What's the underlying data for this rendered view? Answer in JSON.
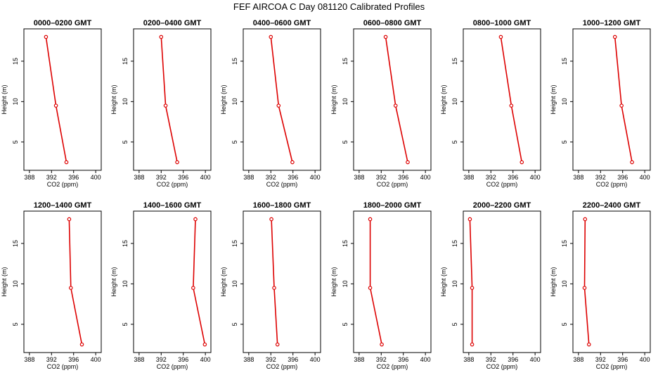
{
  "figure": {
    "title": "FEF AIRCOA C  Day 081120  Calibrated Profiles"
  },
  "colors": {
    "profile": "#dd0000",
    "axis": "#000000"
  },
  "chart_data": [
    {
      "type": "line",
      "title": "0000–0200 GMT",
      "xlabel": "CO2 (ppm)",
      "ylabel": "Height (m)",
      "xlim": [
        387,
        401
      ],
      "ylim": [
        1.5,
        19
      ],
      "xticks": [
        388,
        392,
        396,
        400
      ],
      "yticks": [
        5,
        10,
        15
      ],
      "x": [
        391.0,
        392.8,
        394.7
      ],
      "y": [
        18,
        9.5,
        2.5
      ]
    },
    {
      "type": "line",
      "title": "0200–0400 GMT",
      "xlabel": "CO2 (ppm)",
      "ylabel": "Height (m)",
      "xlim": [
        387,
        401
      ],
      "ylim": [
        1.5,
        19
      ],
      "xticks": [
        388,
        392,
        396,
        400
      ],
      "yticks": [
        5,
        10,
        15
      ],
      "x": [
        392.0,
        392.8,
        394.9
      ],
      "y": [
        18,
        9.5,
        2.5
      ]
    },
    {
      "type": "line",
      "title": "0400–0600 GMT",
      "xlabel": "CO2 (ppm)",
      "ylabel": "Height (m)",
      "xlim": [
        387,
        401
      ],
      "ylim": [
        1.5,
        19
      ],
      "xticks": [
        388,
        392,
        396,
        400
      ],
      "yticks": [
        5,
        10,
        15
      ],
      "x": [
        392.0,
        393.4,
        395.9
      ],
      "y": [
        18,
        9.5,
        2.5
      ]
    },
    {
      "type": "line",
      "title": "0600–0800 GMT",
      "xlabel": "CO2 (ppm)",
      "ylabel": "Height (m)",
      "xlim": [
        387,
        401
      ],
      "ylim": [
        1.5,
        19
      ],
      "xticks": [
        388,
        392,
        396,
        400
      ],
      "yticks": [
        5,
        10,
        15
      ],
      "x": [
        392.8,
        394.6,
        396.8
      ],
      "y": [
        18,
        9.5,
        2.5
      ]
    },
    {
      "type": "line",
      "title": "0800–1000 GMT",
      "xlabel": "CO2 (ppm)",
      "ylabel": "Height (m)",
      "xlim": [
        387,
        401
      ],
      "ylim": [
        1.5,
        19
      ],
      "xticks": [
        388,
        392,
        396,
        400
      ],
      "yticks": [
        5,
        10,
        15
      ],
      "x": [
        393.8,
        395.7,
        397.6
      ],
      "y": [
        18,
        9.5,
        2.5
      ]
    },
    {
      "type": "line",
      "title": "1000–1200 GMT",
      "xlabel": "CO2 (ppm)",
      "ylabel": "Height (m)",
      "xlim": [
        387,
        401
      ],
      "ylim": [
        1.5,
        19
      ],
      "xticks": [
        388,
        392,
        396,
        400
      ],
      "yticks": [
        5,
        10,
        15
      ],
      "x": [
        394.6,
        395.8,
        397.7
      ],
      "y": [
        18,
        9.5,
        2.5
      ]
    },
    {
      "type": "line",
      "title": "1200–1400 GMT",
      "xlabel": "CO2 (ppm)",
      "ylabel": "Height (m)",
      "xlim": [
        387,
        401
      ],
      "ylim": [
        1.5,
        19
      ],
      "xticks": [
        388,
        392,
        396,
        400
      ],
      "yticks": [
        5,
        10,
        15
      ],
      "x": [
        395.2,
        395.5,
        397.5
      ],
      "y": [
        18,
        9.5,
        2.5
      ]
    },
    {
      "type": "line",
      "title": "1400–1600 GMT",
      "xlabel": "CO2 (ppm)",
      "ylabel": "Height (m)",
      "xlim": [
        387,
        401
      ],
      "ylim": [
        1.5,
        19
      ],
      "xticks": [
        388,
        392,
        396,
        400
      ],
      "yticks": [
        5,
        10,
        15
      ],
      "x": [
        398.2,
        397.8,
        399.9
      ],
      "y": [
        18,
        9.5,
        2.5
      ]
    },
    {
      "type": "line",
      "title": "1600–1800 GMT",
      "xlabel": "CO2 (ppm)",
      "ylabel": "Height (m)",
      "xlim": [
        387,
        401
      ],
      "ylim": [
        1.5,
        19
      ],
      "xticks": [
        388,
        392,
        396,
        400
      ],
      "yticks": [
        5,
        10,
        15
      ],
      "x": [
        392.1,
        392.6,
        393.2
      ],
      "y": [
        18,
        9.5,
        2.5
      ]
    },
    {
      "type": "line",
      "title": "1800–2000 GMT",
      "xlabel": "CO2 (ppm)",
      "ylabel": "Height (m)",
      "xlim": [
        387,
        401
      ],
      "ylim": [
        1.5,
        19
      ],
      "xticks": [
        388,
        392,
        396,
        400
      ],
      "yticks": [
        5,
        10,
        15
      ],
      "x": [
        390.0,
        390.0,
        392.1
      ],
      "y": [
        18,
        9.5,
        2.5
      ]
    },
    {
      "type": "line",
      "title": "2000–2200 GMT",
      "xlabel": "CO2 (ppm)",
      "ylabel": "Height (m)",
      "xlim": [
        387,
        401
      ],
      "ylim": [
        1.5,
        19
      ],
      "xticks": [
        388,
        392,
        396,
        400
      ],
      "yticks": [
        5,
        10,
        15
      ],
      "x": [
        388.2,
        388.6,
        388.6
      ],
      "y": [
        18,
        9.5,
        2.5
      ]
    },
    {
      "type": "line",
      "title": "2200–2400 GMT",
      "xlabel": "CO2 (ppm)",
      "ylabel": "Height (m)",
      "xlim": [
        387,
        401
      ],
      "ylim": [
        1.5,
        19
      ],
      "xticks": [
        388,
        392,
        396,
        400
      ],
      "yticks": [
        5,
        10,
        15
      ],
      "x": [
        389.2,
        389.1,
        389.9
      ],
      "y": [
        18,
        9.5,
        2.5
      ]
    }
  ]
}
